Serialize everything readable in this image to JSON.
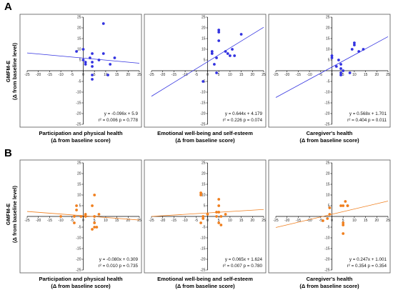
{
  "panel_labels": [
    "A",
    "B"
  ],
  "ylabel_lines": [
    "GMFM-E",
    "(Δ from baseline level)"
  ],
  "chart_data": [
    {
      "type": "scatter",
      "row": 0,
      "col": 0,
      "xlabel": [
        "Participation and physical health",
        "(Δ from baseline score)"
      ],
      "ylabel": "GMFM-E (Δ from baseline level)",
      "xlim": [
        -25,
        25
      ],
      "ylim": [
        -25,
        25
      ],
      "x_ticks": [
        -25,
        -20,
        -15,
        -10,
        -5,
        0,
        5,
        10,
        15,
        20,
        25
      ],
      "y_ticks": [
        25,
        20,
        15,
        10,
        5,
        -5,
        -10,
        -15,
        -20,
        -25
      ],
      "color": "#3333e0",
      "points": [
        [
          -3,
          9
        ],
        [
          0,
          10
        ],
        [
          0,
          5
        ],
        [
          1,
          3
        ],
        [
          1,
          4
        ],
        [
          3,
          6
        ],
        [
          4,
          8
        ],
        [
          4,
          4
        ],
        [
          4,
          2
        ],
        [
          4,
          -2
        ],
        [
          4,
          -4
        ],
        [
          7,
          5
        ],
        [
          9,
          22
        ],
        [
          9,
          8
        ],
        [
          11,
          -2
        ],
        [
          12,
          3
        ],
        [
          14,
          6
        ]
      ],
      "fit": {
        "slope": -0.096,
        "intercept": 5.9
      },
      "annotation": [
        "y = -0.096x + 5.9",
        "r² = 0.006  p = 0.778"
      ]
    },
    {
      "type": "scatter",
      "row": 0,
      "col": 1,
      "xlabel": [
        "Emotional well-being and self-esteem",
        "(Δ from baseline score)"
      ],
      "ylabel": "GMFM-E (Δ from baseline level)",
      "xlim": [
        -25,
        25
      ],
      "ylim": [
        -25,
        25
      ],
      "x_ticks": [
        -25,
        -20,
        -15,
        -10,
        -5,
        0,
        5,
        10,
        15,
        20,
        25
      ],
      "y_ticks": [
        25,
        20,
        15,
        10,
        5,
        -5,
        -10,
        -15,
        -20,
        -25
      ],
      "color": "#3333e0",
      "points": [
        [
          -2,
          -5
        ],
        [
          2,
          9
        ],
        [
          2,
          8
        ],
        [
          3,
          3
        ],
        [
          4,
          6
        ],
        [
          5,
          19
        ],
        [
          5,
          18
        ],
        [
          5,
          14
        ],
        [
          8,
          9
        ],
        [
          9,
          8
        ],
        [
          10,
          7
        ],
        [
          11,
          10
        ],
        [
          12,
          7
        ],
        [
          15,
          17
        ],
        [
          4,
          -1
        ]
      ],
      "fit": {
        "slope": 0.644,
        "intercept": 4.179
      },
      "annotation": [
        "y = 0.644x + 4.179",
        "r² = 0.226  p = 0.074"
      ]
    },
    {
      "type": "scatter",
      "row": 0,
      "col": 2,
      "xlabel": [
        "Caregiver's health",
        "(Δ from baseline score)"
      ],
      "ylabel": "GMFM-E (Δ from baseline level)",
      "xlim": [
        -25,
        25
      ],
      "ylim": [
        -25,
        25
      ],
      "x_ticks": [
        -25,
        -20,
        -15,
        -10,
        -5,
        0,
        5,
        10,
        15,
        20,
        25
      ],
      "y_ticks": [
        25,
        20,
        15,
        10,
        5,
        -5,
        -10,
        -15,
        -20,
        -25
      ],
      "color": "#3333e0",
      "points": [
        [
          0,
          6
        ],
        [
          0,
          7
        ],
        [
          2,
          2
        ],
        [
          3,
          5
        ],
        [
          4,
          3
        ],
        [
          4,
          1
        ],
        [
          4,
          -1
        ],
        [
          4,
          -2
        ],
        [
          8,
          -1
        ],
        [
          9,
          10
        ],
        [
          10,
          12
        ],
        [
          10,
          13
        ],
        [
          12,
          9
        ],
        [
          14,
          10
        ],
        [
          5,
          0
        ]
      ],
      "fit": {
        "slope": 0.568,
        "intercept": 1.701
      },
      "annotation": [
        "y = 0.568x + 1.701",
        "r² = 0.404  p = 0.011"
      ]
    },
    {
      "type": "scatter",
      "row": 1,
      "col": 0,
      "xlabel": [
        "Participation and physical health",
        "(Δ from baseline score)"
      ],
      "ylabel": "GMFM-E (Δ from baseline level)",
      "xlim": [
        -25,
        25
      ],
      "ylim": [
        -25,
        25
      ],
      "x_ticks": [
        -25,
        -20,
        -15,
        -10,
        -5,
        0,
        5,
        10,
        15,
        20,
        25
      ],
      "y_ticks": [
        25,
        20,
        15,
        10,
        5,
        -5,
        -10,
        -15,
        -20,
        -25
      ],
      "color": "#f07f1e",
      "points": [
        [
          -3,
          5
        ],
        [
          -3,
          3
        ],
        [
          -4,
          0
        ],
        [
          -4,
          -3
        ],
        [
          -10,
          0
        ],
        [
          -1,
          0
        ],
        [
          1,
          0
        ],
        [
          1,
          1
        ],
        [
          4,
          5
        ],
        [
          5,
          10
        ],
        [
          5,
          0
        ],
        [
          5,
          -3
        ],
        [
          5,
          -5
        ],
        [
          4,
          -6
        ],
        [
          6,
          -5
        ],
        [
          7,
          1
        ]
      ],
      "fit": {
        "slope": -0.08,
        "intercept": 0.309
      },
      "annotation": [
        "y = -0.080x + 0.309",
        "r² = 0.010  p = 0.735"
      ]
    },
    {
      "type": "scatter",
      "row": 1,
      "col": 1,
      "xlabel": [
        "Emotional well-being and self-esteem",
        "(Δ from baseline score)"
      ],
      "ylabel": "GMFM-E (Δ from baseline level)",
      "xlim": [
        -25,
        25
      ],
      "ylim": [
        -25,
        25
      ],
      "x_ticks": [
        -25,
        -20,
        -15,
        -10,
        -5,
        0,
        5,
        10,
        15,
        20,
        25
      ],
      "y_ticks": [
        25,
        20,
        15,
        10,
        5,
        -5,
        -10,
        -15,
        -20,
        -25
      ],
      "color": "#f07f1e",
      "points": [
        [
          -3,
          11
        ],
        [
          -3,
          10
        ],
        [
          -2,
          0
        ],
        [
          -2,
          -1
        ],
        [
          -3,
          -3
        ],
        [
          0,
          1
        ],
        [
          4,
          2
        ],
        [
          4,
          0
        ],
        [
          5,
          8
        ],
        [
          5,
          5
        ],
        [
          5,
          2
        ],
        [
          6,
          0
        ],
        [
          5,
          -3
        ],
        [
          6,
          -4
        ],
        [
          8,
          1
        ]
      ],
      "fit": {
        "slope": 0.065,
        "intercept": 1.624
      },
      "annotation": [
        "y = 0.065x + 1.624",
        "r² = 0.007  p = 0.780"
      ]
    },
    {
      "type": "scatter",
      "row": 1,
      "col": 2,
      "xlabel": [
        "Caregiver's health",
        "(Δ from baseline score)"
      ],
      "ylabel": "GMFM-E (Δ from baseline level)",
      "xlim": [
        -25,
        25
      ],
      "ylim": [
        -25,
        25
      ],
      "x_ticks": [
        -25,
        -20,
        -15,
        -10,
        -5,
        0,
        5,
        10,
        15,
        20,
        25
      ],
      "y_ticks": [
        25,
        20,
        15,
        10,
        5,
        -5,
        -10,
        -15,
        -20,
        -25
      ],
      "color": "#f07f1e",
      "points": [
        [
          -1,
          4
        ],
        [
          -1,
          1
        ],
        [
          -2,
          -1
        ],
        [
          -4,
          -2
        ],
        [
          4,
          5
        ],
        [
          5,
          5
        ],
        [
          6,
          7
        ],
        [
          7,
          5
        ],
        [
          7,
          5
        ],
        [
          5,
          -3
        ],
        [
          5,
          -4
        ],
        [
          5,
          -8
        ]
      ],
      "fit": {
        "slope": 0.247,
        "intercept": 1.001
      },
      "annotation": [
        "y = 0.247x + 1.001",
        "r² = 0.354  p = 0.354"
      ]
    }
  ]
}
